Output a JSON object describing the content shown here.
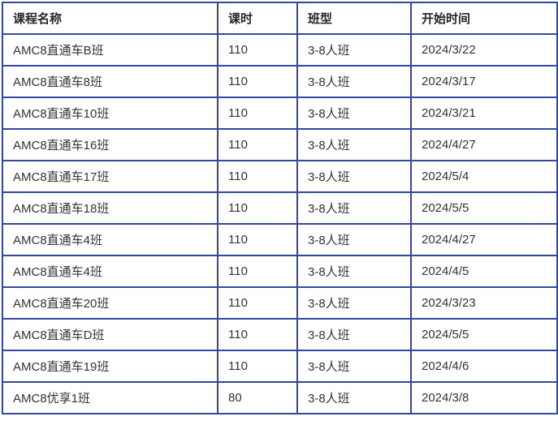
{
  "colors": {
    "border": "#33479d",
    "header_text": "#262626",
    "cell_text": "#333333",
    "background": "#ffffff"
  },
  "table": {
    "headers": [
      "课程名称",
      "课时",
      "班型",
      "开始时间"
    ],
    "rows": [
      [
        "AMC8直通车B班",
        "110",
        "3-8人班",
        "2024/3/22"
      ],
      [
        "AMC8直通车8班",
        "110",
        "3-8人班",
        "2024/3/17"
      ],
      [
        "AMC8直通车10班",
        "110",
        "3-8人班",
        "2024/3/21"
      ],
      [
        "AMC8直通车16班",
        "110",
        "3-8人班",
        "2024/4/27"
      ],
      [
        "AMC8直通车17班",
        "110",
        "3-8人班",
        "2024/5/4"
      ],
      [
        "AMC8直通车18班",
        "110",
        "3-8人班",
        "2024/5/5"
      ],
      [
        "AMC8直通车4班",
        "110",
        "3-8人班",
        "2024/4/27"
      ],
      [
        "AMC8直通车4班",
        "110",
        "3-8人班",
        "2024/4/5"
      ],
      [
        "AMC8直通车20班",
        "110",
        "3-8人班",
        "2024/3/23"
      ],
      [
        "AMC8直通车D班",
        "110",
        "3-8人班",
        "2024/5/5"
      ],
      [
        "AMC8直通车19班",
        "110",
        "3-8人班",
        "2024/4/6"
      ],
      [
        "AMC8优享1班",
        "80",
        "3-8人班",
        "2024/3/8"
      ]
    ]
  }
}
